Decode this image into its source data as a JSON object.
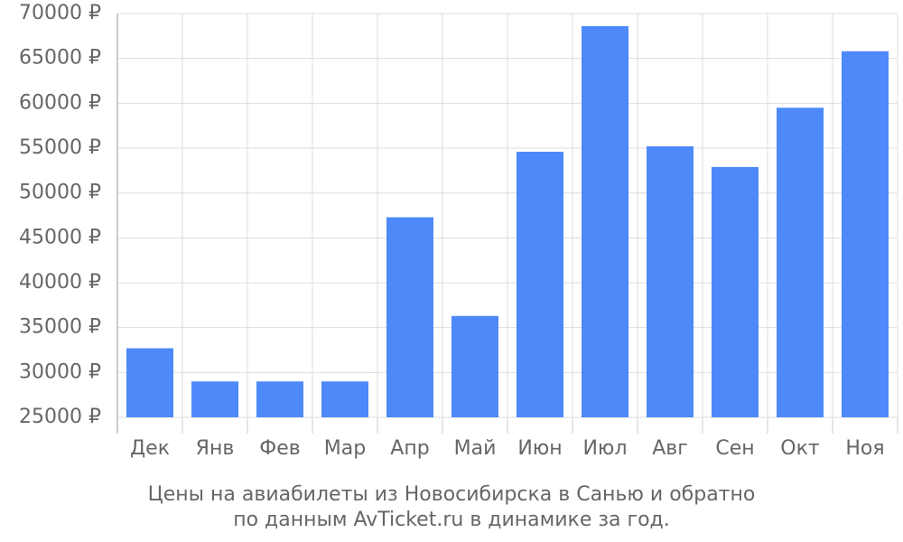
{
  "chart_data": {
    "type": "bar",
    "title": [
      "Цены на авиабилеты из Новосибирска в Санью и обратно",
      "по данным AvTicket.ru в динамике за год."
    ],
    "categories": [
      "Дек",
      "Янв",
      "Фев",
      "Мар",
      "Апр",
      "Май",
      "Июн",
      "Июл",
      "Авг",
      "Сен",
      "Окт",
      "Ноя"
    ],
    "values": [
      32700,
      29000,
      29000,
      29000,
      47300,
      36300,
      54600,
      68600,
      55200,
      52900,
      59500,
      65800
    ],
    "color": "#4d89f9",
    "ylim": [
      25000,
      70000
    ],
    "yticks": [
      {
        "value": 25000,
        "label": "25000 ₽"
      },
      {
        "value": 30000,
        "label": "30000 ₽"
      },
      {
        "value": 35000,
        "label": "35000 ₽"
      },
      {
        "value": 40000,
        "label": "40000 ₽"
      },
      {
        "value": 45000,
        "label": "45000 ₽"
      },
      {
        "value": 50000,
        "label": "50000 ₽"
      },
      {
        "value": 55000,
        "label": "55000 ₽"
      },
      {
        "value": 60000,
        "label": "60000 ₽"
      },
      {
        "value": 65000,
        "label": "65000 ₽"
      },
      {
        "value": 70000,
        "label": "70000 ₽"
      }
    ],
    "grid": true
  }
}
